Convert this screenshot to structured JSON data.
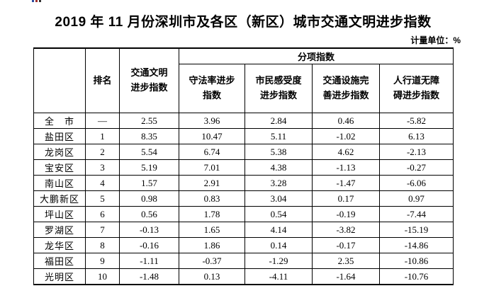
{
  "title": "2019 年 11 月份深圳市及各区（新区）城市交通文明进步指数",
  "unit_label": "计量单位：%",
  "colors": {
    "text": "#000000",
    "border": "#000000",
    "background": "#ffffff"
  },
  "table": {
    "columns": {
      "district_header": "",
      "rank": "排名",
      "overall_index": "交通文明\n进步指数",
      "sub_group": "分项指数",
      "sub_columns": [
        "守法率进步\n指数",
        "市民感受度\n进步指数",
        "交通设施完\n善进步指数",
        "人行道无障\n碍进步指数"
      ]
    },
    "rows": [
      {
        "district": "全　市",
        "rank": "—",
        "overall": "2.55",
        "sub": [
          "3.96",
          "2.84",
          "0.46",
          "-5.82"
        ]
      },
      {
        "district": "盐田区",
        "rank": "1",
        "overall": "8.35",
        "sub": [
          "10.47",
          "5.11",
          "-1.02",
          "6.13"
        ]
      },
      {
        "district": "龙岗区",
        "rank": "2",
        "overall": "5.54",
        "sub": [
          "6.74",
          "5.38",
          "4.62",
          "-2.13"
        ]
      },
      {
        "district": "宝安区",
        "rank": "3",
        "overall": "5.19",
        "sub": [
          "7.01",
          "4.38",
          "-1.13",
          "-0.27"
        ]
      },
      {
        "district": "南山区",
        "rank": "4",
        "overall": "1.57",
        "sub": [
          "2.91",
          "3.28",
          "-1.47",
          "-6.06"
        ]
      },
      {
        "district": "大鹏新区",
        "rank": "5",
        "overall": "0.98",
        "sub": [
          "0.83",
          "3.04",
          "0.17",
          "0.97"
        ]
      },
      {
        "district": "坪山区",
        "rank": "6",
        "overall": "0.56",
        "sub": [
          "1.78",
          "0.54",
          "-0.19",
          "-7.44"
        ]
      },
      {
        "district": "罗湖区",
        "rank": "7",
        "overall": "-0.13",
        "sub": [
          "1.65",
          "4.14",
          "-3.82",
          "-15.19"
        ]
      },
      {
        "district": "龙华区",
        "rank": "8",
        "overall": "-0.16",
        "sub": [
          "1.86",
          "0.14",
          "-0.17",
          "-14.86"
        ]
      },
      {
        "district": "福田区",
        "rank": "9",
        "overall": "-1.11",
        "sub": [
          "-0.37",
          "-1.29",
          "2.35",
          "-10.86"
        ]
      },
      {
        "district": "光明区",
        "rank": "10",
        "overall": "-1.48",
        "sub": [
          "0.13",
          "-4.11",
          "-1.64",
          "-10.76"
        ]
      }
    ]
  }
}
